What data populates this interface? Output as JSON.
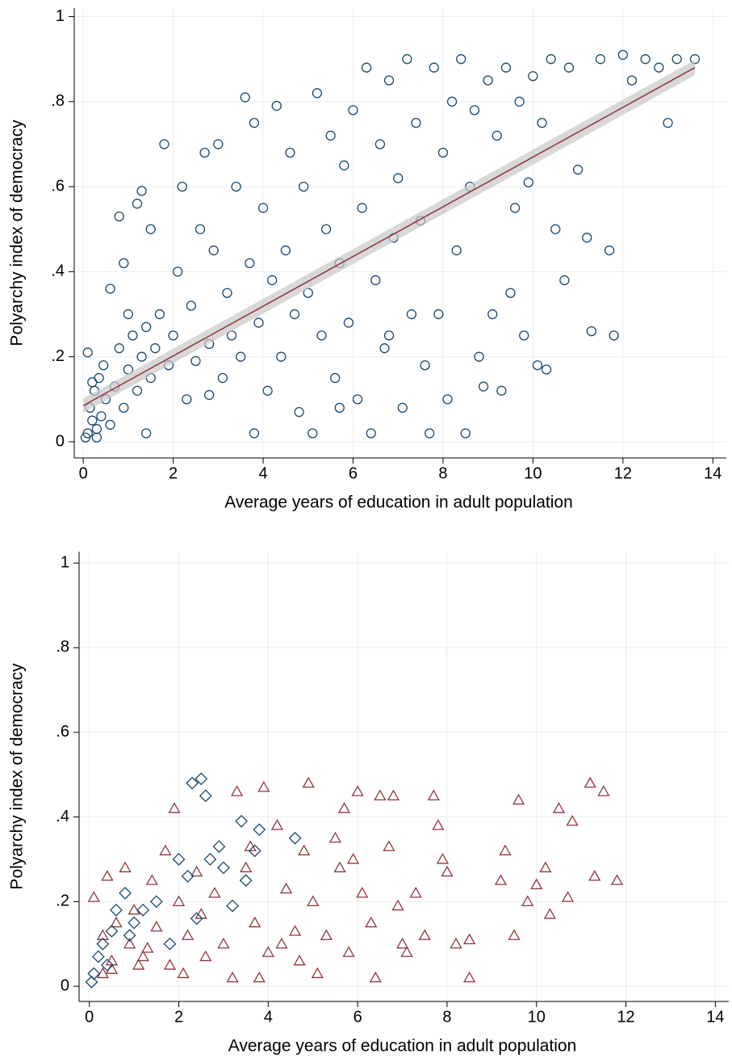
{
  "chart_data": [
    {
      "type": "scatter",
      "xlabel": "Average years of education in adult population",
      "ylabel": "Polyarchy index of democracy",
      "xlim": [
        -0.2,
        14.3
      ],
      "ylim": [
        -0.038,
        1.02
      ],
      "xticks": [
        0,
        2,
        4,
        6,
        8,
        10,
        12,
        14
      ],
      "yticks": [
        0,
        {
          "value": 0.2,
          "label": ".2"
        },
        {
          "value": 0.4,
          "label": ".4"
        },
        {
          "value": 0.6,
          "label": ".6"
        },
        {
          "value": 0.8,
          "label": ".8"
        },
        1
      ],
      "grid": true,
      "series": [
        {
          "marker": "circle",
          "color": "#1a476f",
          "x": [
            0.1,
            0.2,
            0.3,
            0.15,
            0.4,
            0.25,
            0.5,
            0.35,
            0.6,
            0.1,
            0.45,
            0.7,
            0.8,
            0.9,
            1.0,
            1.1,
            1.2,
            1.3,
            1.4,
            1.5,
            0.6,
            0.9,
            1.2,
            1.3,
            1.5,
            1.8,
            0.8,
            1.6,
            1.7,
            1.9,
            2.0,
            2.1,
            2.2,
            2.3,
            2.4,
            2.5,
            2.6,
            2.7,
            2.8,
            2.9,
            3.0,
            3.1,
            3.2,
            3.3,
            3.4,
            3.5,
            3.6,
            3.7,
            3.8,
            3.9,
            4.0,
            4.1,
            4.2,
            4.3,
            4.4,
            4.5,
            4.6,
            4.7,
            4.8,
            4.9,
            5.0,
            5.1,
            5.2,
            5.3,
            5.4,
            5.5,
            5.6,
            5.7,
            5.8,
            5.9,
            6.0,
            6.1,
            6.2,
            6.3,
            6.4,
            6.5,
            6.6,
            6.7,
            6.8,
            6.9,
            7.0,
            7.1,
            7.2,
            7.3,
            7.4,
            7.5,
            7.6,
            7.7,
            7.8,
            7.9,
            8.0,
            8.1,
            8.2,
            8.3,
            8.4,
            8.5,
            8.6,
            8.7,
            8.8,
            9.0,
            9.1,
            9.2,
            9.3,
            9.4,
            9.5,
            9.6,
            9.7,
            9.8,
            9.9,
            10.0,
            10.1,
            10.2,
            10.3,
            10.4,
            10.5,
            10.7,
            10.8,
            11.0,
            11.2,
            11.3,
            11.5,
            11.7,
            11.8,
            12.0,
            12.2,
            12.5,
            12.8,
            13.0,
            13.2,
            13.6,
            0.05,
            0.2,
            0.3,
            1.0,
            1.4,
            2.8,
            3.8,
            5.7,
            6.8,
            8.9
          ],
          "values": [
            0.02,
            0.05,
            0.03,
            0.08,
            0.06,
            0.12,
            0.1,
            0.15,
            0.04,
            0.21,
            0.18,
            0.13,
            0.22,
            0.08,
            0.17,
            0.25,
            0.12,
            0.2,
            0.27,
            0.15,
            0.36,
            0.42,
            0.56,
            0.59,
            0.5,
            0.7,
            0.53,
            0.22,
            0.3,
            0.18,
            0.25,
            0.4,
            0.6,
            0.1,
            0.32,
            0.19,
            0.5,
            0.68,
            0.23,
            0.45,
            0.7,
            0.15,
            0.35,
            0.25,
            0.6,
            0.2,
            0.81,
            0.42,
            0.75,
            0.28,
            0.55,
            0.12,
            0.38,
            0.79,
            0.2,
            0.45,
            0.68,
            0.3,
            0.07,
            0.6,
            0.35,
            0.02,
            0.82,
            0.25,
            0.5,
            0.72,
            0.15,
            0.42,
            0.65,
            0.28,
            0.78,
            0.1,
            0.55,
            0.88,
            0.02,
            0.38,
            0.7,
            0.22,
            0.85,
            0.48,
            0.62,
            0.08,
            0.9,
            0.3,
            0.75,
            0.52,
            0.18,
            0.02,
            0.88,
            0.3,
            0.68,
            0.1,
            0.8,
            0.45,
            0.9,
            0.02,
            0.6,
            0.78,
            0.2,
            0.85,
            0.3,
            0.72,
            0.12,
            0.88,
            0.35,
            0.55,
            0.8,
            0.25,
            0.61,
            0.86,
            0.18,
            0.75,
            0.17,
            0.9,
            0.5,
            0.38,
            0.88,
            0.64,
            0.48,
            0.26,
            0.9,
            0.45,
            0.25,
            0.91,
            0.85,
            0.9,
            0.88,
            0.75,
            0.9,
            0.9,
            0.01,
            0.14,
            0.01,
            0.3,
            0.02,
            0.11,
            0.02,
            0.08,
            0.25,
            0.13
          ]
        },
        {
          "type": "line",
          "color": "#90353b",
          "band_color": "#c8c8c8",
          "x": [
            0,
            13.6
          ],
          "values": [
            0.085,
            0.88
          ],
          "lower": [
            0.068,
            0.862
          ],
          "upper": [
            0.102,
            0.898
          ]
        }
      ]
    },
    {
      "type": "scatter",
      "xlabel": "Average years of education in adult population",
      "ylabel": "Polyarchy index of democracy",
      "xlim": [
        -0.23,
        14.3
      ],
      "ylim": [
        -0.036,
        1.027
      ],
      "xticks": [
        0,
        2,
        4,
        6,
        8,
        10,
        12,
        14
      ],
      "yticks": [
        0,
        {
          "value": 0.2,
          "label": ".2"
        },
        {
          "value": 0.4,
          "label": ".4"
        },
        {
          "value": 0.6,
          "label": ".6"
        },
        {
          "value": 0.8,
          "label": ".8"
        },
        1
      ],
      "grid": true,
      "series": [
        {
          "marker": "triangle",
          "color": "#90353b",
          "x": [
            0.1,
            0.3,
            0.4,
            0.5,
            0.6,
            0.8,
            0.9,
            1.0,
            1.2,
            1.4,
            1.5,
            1.7,
            1.8,
            1.9,
            2.0,
            2.2,
            2.4,
            2.6,
            2.8,
            3.0,
            3.2,
            3.3,
            3.5,
            3.7,
            3.8,
            3.9,
            4.0,
            4.2,
            4.4,
            4.6,
            4.8,
            4.9,
            5.0,
            5.1,
            5.3,
            5.5,
            5.6,
            5.7,
            5.8,
            6.0,
            6.1,
            6.3,
            6.4,
            6.5,
            6.7,
            6.8,
            7.0,
            7.1,
            7.3,
            7.5,
            7.7,
            7.8,
            7.9,
            8.0,
            8.2,
            8.5,
            8.5,
            9.2,
            9.3,
            9.5,
            9.6,
            9.8,
            10.0,
            10.2,
            10.3,
            10.5,
            10.7,
            10.8,
            11.2,
            11.3,
            11.5,
            11.8,
            1.1,
            2.5,
            3.6,
            4.7,
            6.9,
            5.9,
            0.3,
            0.5,
            1.3,
            2.1,
            4.3
          ],
          "values": [
            0.21,
            0.12,
            0.26,
            0.04,
            0.15,
            0.28,
            0.1,
            0.18,
            0.07,
            0.25,
            0.14,
            0.32,
            0.05,
            0.42,
            0.2,
            0.12,
            0.27,
            0.07,
            0.22,
            0.1,
            0.02,
            0.46,
            0.28,
            0.15,
            0.02,
            0.47,
            0.08,
            0.38,
            0.23,
            0.13,
            0.32,
            0.48,
            0.2,
            0.03,
            0.12,
            0.35,
            0.28,
            0.42,
            0.08,
            0.46,
            0.22,
            0.15,
            0.02,
            0.45,
            0.33,
            0.45,
            0.1,
            0.08,
            0.22,
            0.12,
            0.45,
            0.38,
            0.3,
            0.27,
            0.1,
            0.02,
            0.11,
            0.25,
            0.32,
            0.12,
            0.44,
            0.2,
            0.24,
            0.28,
            0.17,
            0.42,
            0.21,
            0.39,
            0.48,
            0.26,
            0.46,
            0.25,
            0.05,
            0.17,
            0.33,
            0.06,
            0.19,
            0.3,
            0.03,
            0.06,
            0.09,
            0.03,
            0.1
          ]
        },
        {
          "marker": "diamond",
          "color": "#1a476f",
          "x": [
            0.05,
            0.1,
            0.2,
            0.3,
            0.4,
            0.5,
            0.6,
            0.8,
            0.9,
            1.0,
            1.2,
            1.5,
            1.8,
            2.0,
            2.3,
            2.5,
            2.6,
            2.2,
            2.7,
            2.9,
            3.2,
            3.4,
            3.5,
            3.7,
            3.8,
            4.6,
            2.4,
            3.0
          ],
          "values": [
            0.01,
            0.03,
            0.07,
            0.1,
            0.05,
            0.13,
            0.18,
            0.22,
            0.12,
            0.15,
            0.18,
            0.2,
            0.1,
            0.3,
            0.48,
            0.49,
            0.45,
            0.26,
            0.3,
            0.33,
            0.19,
            0.39,
            0.25,
            0.32,
            0.37,
            0.35,
            0.16,
            0.28
          ]
        }
      ]
    }
  ]
}
